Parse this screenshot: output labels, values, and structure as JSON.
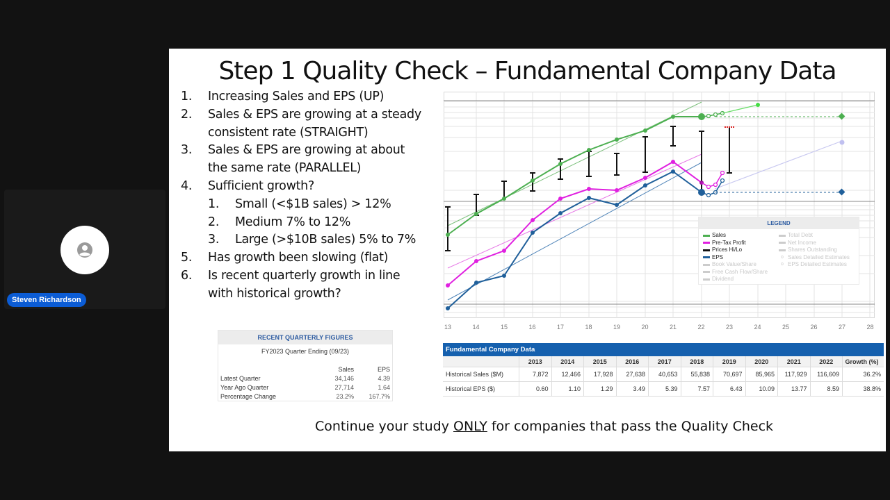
{
  "participant": {
    "name": "Steven Richardson",
    "avatar_icon": "person-icon"
  },
  "slide": {
    "title": "Step 1 Quality Check – Fundamental Company Data",
    "checklist": [
      {
        "num": "1.",
        "lines": [
          "Increasing Sales and EPS (UP)"
        ]
      },
      {
        "num": "2.",
        "lines": [
          "Sales & EPS are growing at a steady",
          "consistent rate (STRAIGHT)"
        ]
      },
      {
        "num": "3.",
        "lines": [
          "Sales & EPS are growing at about",
          "the same rate (PARALLEL)"
        ]
      },
      {
        "num": "4.",
        "lines": [
          "Sufficient growth?"
        ],
        "sub": [
          {
            "num": "1.",
            "text": "Small (<$1B sales) > 12%"
          },
          {
            "num": "2.",
            "text": "Medium 7% to 12%"
          },
          {
            "num": "3.",
            "text": "Large (>$10B sales) 5% to 7%"
          }
        ]
      },
      {
        "num": "5.",
        "lines": [
          "Has growth been slowing (flat)"
        ]
      },
      {
        "num": "6.",
        "lines": [
          "Is recent quarterly growth in line",
          "with historical growth?"
        ]
      }
    ],
    "footer": {
      "before": "Continue your study ",
      "emphasis": "ONLY",
      "after": " for companies that pass the Quality Check"
    }
  },
  "quarterly": {
    "title": "RECENT QUARTERLY FIGURES",
    "subtitle": "FY2023 Quarter Ending (09/23)",
    "columns": [
      "Sales",
      "EPS"
    ],
    "rows": [
      {
        "label": "Latest Quarter",
        "sales": "34,146",
        "eps": "4.39"
      },
      {
        "label": "Year Ago Quarter",
        "sales": "27,714",
        "eps": "1.64"
      },
      {
        "label": "Percentage Change",
        "sales": "23.2%",
        "eps": "167.7%"
      }
    ]
  },
  "fundamental": {
    "title": "Fundamental Company Data",
    "years": [
      "2013",
      "2014",
      "2015",
      "2016",
      "2017",
      "2018",
      "2019",
      "2020",
      "2021",
      "2022"
    ],
    "growth_header": "Growth (%)",
    "rows": [
      {
        "label": "Historical Sales ($M)",
        "values": [
          "7,872",
          "12,466",
          "17,928",
          "27,638",
          "40,653",
          "55,838",
          "70,697",
          "85,965",
          "117,929",
          "116,609"
        ],
        "growth": "36.2%"
      },
      {
        "label": "Historical EPS ($)",
        "values": [
          "0.60",
          "1.10",
          "1.29",
          "3.49",
          "5.39",
          "7.57",
          "6.43",
          "10.09",
          "13.77",
          "8.59"
        ],
        "growth": "38.8%"
      }
    ]
  },
  "legend": {
    "title": "LEGEND",
    "left": [
      {
        "label": "Sales",
        "color": "#4caf50",
        "active": true
      },
      {
        "label": "Pre-Tax Profit",
        "color": "#e020e0",
        "active": true
      },
      {
        "label": "Prices Hi/Lo",
        "color": "#111111",
        "active": true
      },
      {
        "label": "EPS",
        "color": "#1f5f9a",
        "active": true
      },
      {
        "label": "Book Value/Share",
        "color": "#cccccc",
        "active": false
      },
      {
        "label": "Free Cash Flow/Share",
        "color": "#cccccc",
        "active": false
      },
      {
        "label": "Dividend",
        "color": "#cccccc",
        "active": false
      }
    ],
    "right": [
      {
        "label": "Total Debt",
        "marker": "bar"
      },
      {
        "label": "Net Income",
        "marker": "bar"
      },
      {
        "label": "Shares Outstanding",
        "marker": "bar"
      },
      {
        "label": "Sales Detailed Estimates",
        "marker": "ring"
      },
      {
        "label": "EPS Detailed Estimates",
        "marker": "ring"
      }
    ]
  },
  "chart_data": {
    "type": "line",
    "title": "",
    "xlabel": "",
    "ylabel": "",
    "x": [
      "13",
      "14",
      "15",
      "16",
      "17",
      "18",
      "19",
      "20",
      "21",
      "22",
      "23",
      "24",
      "25",
      "26",
      "27",
      "28"
    ],
    "grid": true,
    "scale": "log",
    "series": [
      {
        "name": "Sales",
        "color": "#4caf50",
        "x": [
          "13",
          "14",
          "15",
          "16",
          "17",
          "18",
          "19",
          "20",
          "21",
          "22"
        ],
        "values": [
          7872,
          12466,
          17928,
          27638,
          40653,
          55838,
          70697,
          85965,
          117929,
          116609
        ]
      },
      {
        "name": "EPS",
        "color": "#1f5f9a",
        "x": [
          "13",
          "14",
          "15",
          "16",
          "17",
          "18",
          "19",
          "20",
          "21",
          "22"
        ],
        "values": [
          0.6,
          1.1,
          1.29,
          3.49,
          5.39,
          7.57,
          6.43,
          10.09,
          13.77,
          8.59
        ]
      },
      {
        "name": "Pre-Tax Profit",
        "color": "#e020e0",
        "x": [
          "13",
          "14",
          "15",
          "16",
          "17",
          "18",
          "19",
          "20",
          "21",
          "22"
        ],
        "values": null
      },
      {
        "name": "Prices Hi/Lo",
        "color": "#111111",
        "type": "errorbar"
      }
    ],
    "legend_position": "lower-right"
  },
  "colors": {
    "sales": "#4caf50",
    "eps": "#1f5f9a",
    "pretax": "#e020e0",
    "prices": "#111111",
    "table_header": "#1560ae",
    "badge": "#0b5cd5"
  }
}
